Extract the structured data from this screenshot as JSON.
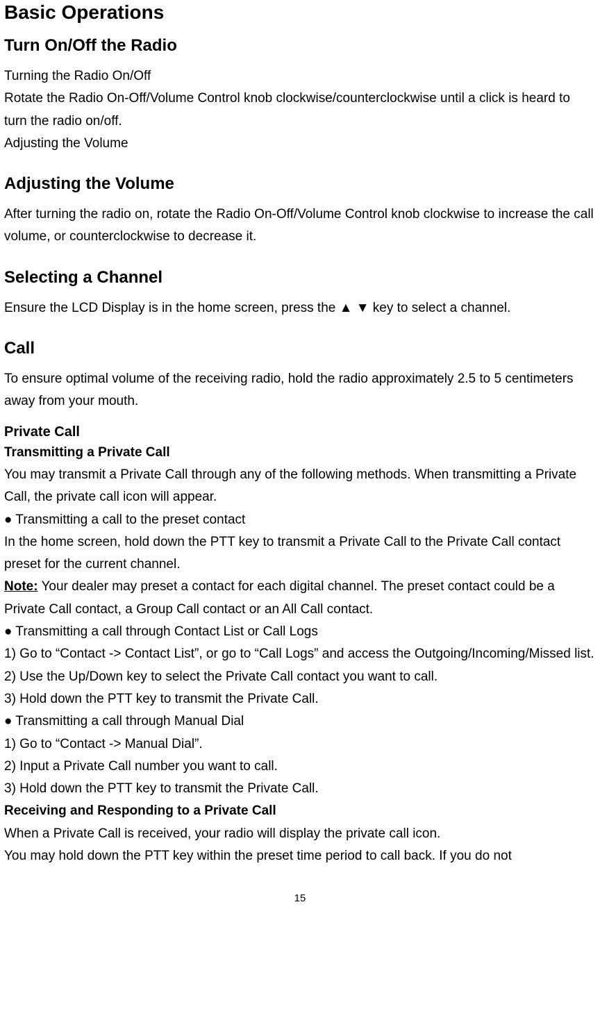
{
  "h1": "Basic Operations",
  "section1": {
    "heading": "Turn On/Off the Radio",
    "sub": "Turning the Radio On/Off",
    "p1": "Rotate the Radio On-Off/Volume Control knob clockwise/counterclockwise until a click is heard to turn the radio on/off.",
    "p2": "Adjusting the Volume"
  },
  "section2": {
    "heading": "Adjusting the Volume",
    "p1": "After turning the radio on, rotate the Radio On-Off/Volume Control knob clockwise to increase the call volume, or counterclockwise to decrease it."
  },
  "section3": {
    "heading": "Selecting a Channel",
    "p1": "Ensure the LCD Display is in the home screen, press the  ▲  ▼  key to select a channel."
  },
  "section4": {
    "heading": "Call",
    "p1": "To ensure optimal volume of the receiving radio, hold the radio approximately 2.5 to 5 centimeters away from your mouth."
  },
  "private": {
    "heading": "Private Call",
    "sub1": "Transmitting a Private Call",
    "p1": "You may transmit a Private Call through any of the following methods. When transmitting a Private Call, the private call icon will appear.",
    "b1": "Transmitting a call to the preset contact",
    "p2": "In the home screen, hold down the PTT key to transmit a Private Call to the Private Call contact preset for the current channel.",
    "note_label": "Note:",
    "note_text": " Your dealer may preset a contact for each digital channel. The preset contact could be a Private Call contact, a Group Call contact or an All Call contact.",
    "b2": "Transmitting a call through Contact List or Call Logs",
    "l1": "1) Go to  “Contact -> Contact List”, or go to  “Call Logs”  and access the Outgoing/Incoming/Missed list.",
    "l2": "2) Use the Up/Down key to select the Private Call contact you want to call.",
    "l3": "3) Hold down the PTT key to transmit the Private Call.",
    "b3": "Transmitting a call through Manual Dial",
    "m1": "1) Go to  “Contact -> Manual Dial”.",
    "m2": "2) Input a Private Call number you want to call.",
    "m3": "3) Hold down the PTT key to transmit the Private Call.",
    "sub2": "Receiving and Responding to a Private Call",
    "r1": "When a Private Call is received, your radio will display the private call icon.",
    "r2": "You may hold down the PTT key within the preset time period to call back. If you do not"
  },
  "page_number": "15"
}
